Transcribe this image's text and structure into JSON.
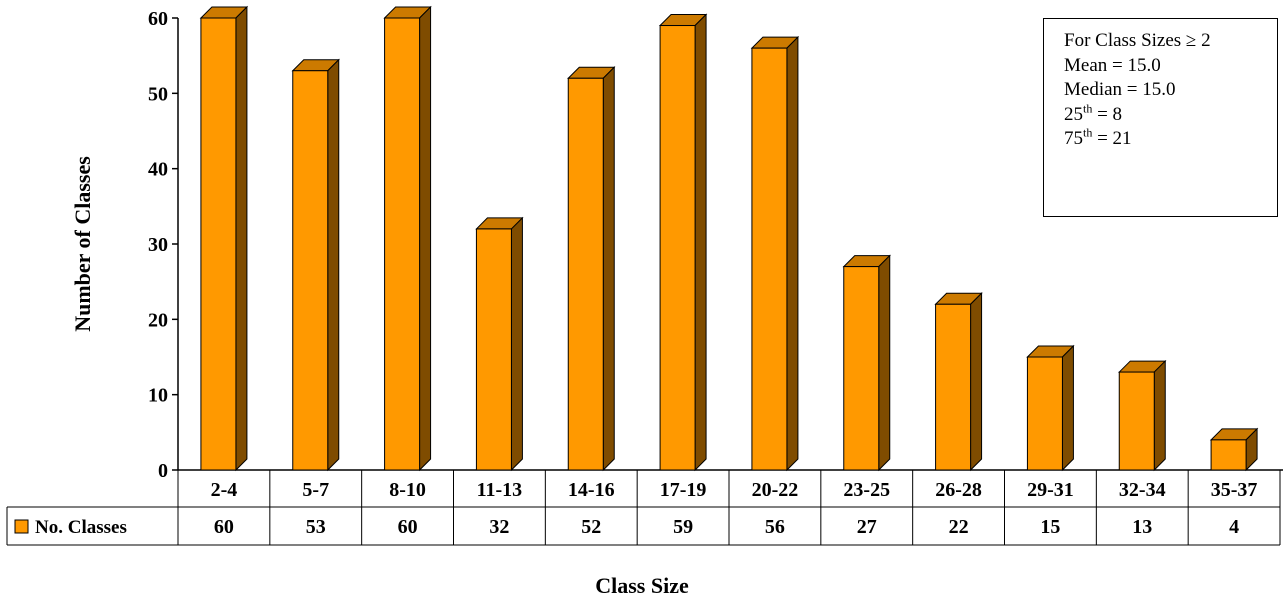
{
  "chart_data": {
    "type": "bar",
    "title": "",
    "xlabel": "Class Size",
    "ylabel": "Number of Classes",
    "categories": [
      "2-4",
      "5-7",
      "8-10",
      "11-13",
      "14-16",
      "17-19",
      "20-22",
      "23-25",
      "26-28",
      "29-31",
      "32-34",
      "35-37"
    ],
    "series": [
      {
        "name": "No. Classes",
        "values": [
          60,
          53,
          60,
          32,
          52,
          59,
          56,
          27,
          22,
          15,
          13,
          4
        ],
        "color": "#FF9900"
      }
    ],
    "ylim": [
      0,
      60
    ],
    "yticks": [
      0,
      10,
      20,
      30,
      40,
      50,
      60
    ],
    "grid": false,
    "legend": "data-table",
    "three_d": true
  },
  "stats_box": {
    "line1": "For Class Sizes ≥ 2",
    "line2": "Mean = 15.0",
    "line3": "Median = 15.0",
    "line4_pre": "25",
    "line4_sup": "th",
    "line4_post": " = 8",
    "line5_pre": "75",
    "line5_sup": "th",
    "line5_post": " = 21"
  },
  "colors": {
    "bar_front": "#FF9900",
    "bar_side": "#7F4C00",
    "bar_top": "#CC7A00"
  }
}
